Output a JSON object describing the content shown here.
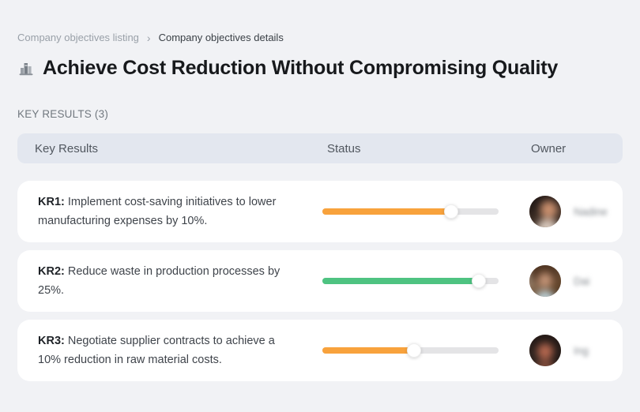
{
  "breadcrumb": {
    "separator": "›",
    "items": [
      {
        "label": "Company objectives listing"
      },
      {
        "label": "Company objectives details"
      }
    ]
  },
  "header": {
    "icon": "buildings-icon",
    "title": "Achieve Cost Reduction Without Compromising Quality"
  },
  "section": {
    "label": "KEY RESULTS (3)"
  },
  "table": {
    "columns": [
      "Key Results",
      "Status",
      "Owner"
    ],
    "rows": [
      {
        "kr_label": "KR1:",
        "kr_text": " Implement cost-saving initiatives to lower manufacturing expenses by 10%.",
        "progress_percent": 73,
        "progress_color": "#F8A23C",
        "owner_name": "Nadine"
      },
      {
        "kr_label": "KR2:",
        "kr_text": " Reduce waste in production processes by 25%.",
        "progress_percent": 89,
        "progress_color": "#4EC381",
        "owner_name": "Dai"
      },
      {
        "kr_label": "KR3:",
        "kr_text": " Negotiate supplier contracts to achieve a 10% reduction in raw material costs.",
        "progress_percent": 52,
        "progress_color": "#F8A23C",
        "owner_name": "Ing"
      }
    ]
  },
  "colors": {
    "accent_orange": "#F8A23C",
    "accent_green": "#4EC381",
    "track_gray": "#E4E4E6",
    "header_bg": "#E3E7EF",
    "page_bg": "#F1F2F5"
  }
}
